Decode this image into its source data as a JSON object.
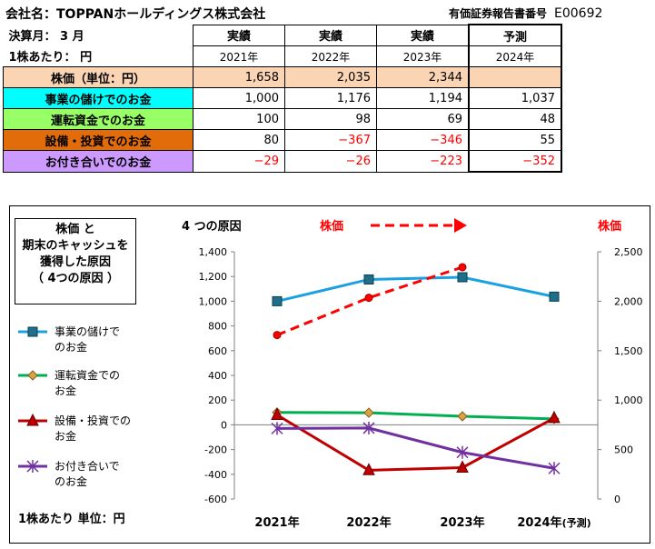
{
  "header": {
    "company": "会社名：TOPPANホールディングス株式会社",
    "doc_label": "有価証券報告書番号",
    "doc_code": "E00692"
  },
  "table": {
    "fiscal_month": "決算月：  3  月",
    "per_share": "1株あたり：   円",
    "columns": [
      {
        "type": "実績",
        "year": "2021年"
      },
      {
        "type": "実績",
        "year": "2022年"
      },
      {
        "type": "実績",
        "year": "2023年"
      },
      {
        "type": "予測",
        "year": "2024年"
      }
    ],
    "rows": [
      {
        "label": "株価（単位：円）",
        "color": "#fbd4b4",
        "values": [
          "1,658",
          "2,035",
          "2,344",
          ""
        ],
        "neg": [
          false,
          false,
          false,
          false
        ]
      },
      {
        "label": "事業の儲けでのお金",
        "color": "#00ffff",
        "values": [
          "1,000",
          "1,176",
          "1,194",
          "1,037"
        ],
        "neg": [
          false,
          false,
          false,
          false
        ]
      },
      {
        "label": "運転資金でのお金",
        "color": "#99ff66",
        "values": [
          "100",
          "98",
          "69",
          "48"
        ],
        "neg": [
          false,
          false,
          false,
          false
        ]
      },
      {
        "label": "設備・投資でのお金",
        "color": "#e26b0a",
        "values": [
          "80",
          "−367",
          "−346",
          "55"
        ],
        "neg": [
          false,
          true,
          true,
          false
        ]
      },
      {
        "label": "お付き合いでのお金",
        "color": "#cc99ff",
        "values": [
          "−29",
          "−26",
          "−223",
          "−352"
        ],
        "neg": [
          true,
          true,
          true,
          true
        ]
      }
    ]
  },
  "chart_title_box": [
    "株価 と",
    "期末のキャッシュを",
    "獲得した原因",
    "（ 4つの原因 ）"
  ],
  "unit_note": "1株あたり  単位：円",
  "legend": [
    {
      "label": [
        "事業の儲けで",
        "のお金"
      ],
      "color": "#1ba1e2",
      "marker": "square-icon"
    },
    {
      "label": [
        "運転資金での",
        "お金"
      ],
      "color": "#00b050",
      "marker": "diamond-icon"
    },
    {
      "label": [
        "設備・投資での",
        "お金"
      ],
      "color": "#c00000",
      "marker": "triangle-icon"
    },
    {
      "label": [
        "お付き合いで",
        "のお金"
      ],
      "color": "#7030a0",
      "marker": "star-icon"
    }
  ],
  "chart_data": {
    "type": "line",
    "left_axis_title": "4 つの原因",
    "right_axis_title": "株価",
    "price_arrow_label": "株価",
    "categories": [
      "2021年",
      "2022年",
      "2023年",
      "2024年"
    ],
    "category_suffix": [
      "",
      "",
      "",
      "(予測)"
    ],
    "ylim_left": [
      -600,
      1400
    ],
    "yticks_left": [
      -600,
      -400,
      -200,
      0,
      200,
      400,
      600,
      800,
      1000,
      1200,
      1400
    ],
    "ylim_right": [
      0,
      2500
    ],
    "yticks_right": [
      0,
      500,
      1000,
      1500,
      2000,
      2500
    ],
    "series": [
      {
        "name": "事業の儲けでのお金",
        "axis": "left",
        "color": "#1ba1e2",
        "marker": "square",
        "values": [
          1000,
          1176,
          1194,
          1037
        ]
      },
      {
        "name": "運転資金でのお金",
        "axis": "left",
        "color": "#00b050",
        "marker": "diamond",
        "values": [
          100,
          98,
          69,
          48
        ]
      },
      {
        "name": "設備・投資でのお金",
        "axis": "left",
        "color": "#c00000",
        "marker": "triangle",
        "values": [
          80,
          -367,
          -346,
          55
        ]
      },
      {
        "name": "お付き合いでのお金",
        "axis": "left",
        "color": "#7030a0",
        "marker": "star",
        "values": [
          -29,
          -26,
          -223,
          -352
        ]
      },
      {
        "name": "株価",
        "axis": "right",
        "color": "#ff0000",
        "marker": "circle",
        "dashed": true,
        "values": [
          1658,
          2035,
          2344,
          null
        ]
      }
    ]
  }
}
